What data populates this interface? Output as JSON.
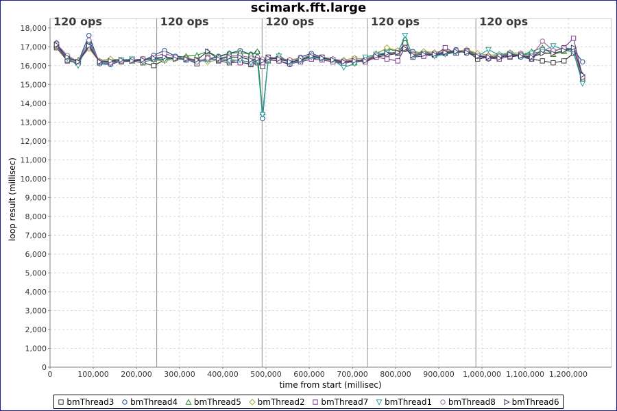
{
  "chart_data": {
    "type": "line",
    "title": "scimark.fft.large",
    "xlabel": "time from start (millisec)",
    "ylabel": "loop result (millisec)",
    "xlim": [
      0,
      1300000
    ],
    "ylim": [
      0,
      18500
    ],
    "x_ticks": [
      0,
      100000,
      200000,
      300000,
      400000,
      500000,
      600000,
      700000,
      800000,
      900000,
      1000000,
      1100000,
      1200000
    ],
    "x_tick_labels": [
      "0",
      "100,000",
      "200,000",
      "300,000",
      "400,000",
      "500,000",
      "600,000",
      "700,000",
      "800,000",
      "900,000",
      "1,000,000",
      "1,100,000",
      "1,200,000"
    ],
    "y_ticks": [
      0,
      1000,
      2000,
      3000,
      4000,
      5000,
      6000,
      7000,
      8000,
      9000,
      10000,
      11000,
      12000,
      13000,
      14000,
      15000,
      16000,
      17000,
      18000
    ],
    "y_tick_labels": [
      "0",
      "1,000",
      "2,000",
      "3,000",
      "4,000",
      "5,000",
      "6,000",
      "7,000",
      "8,000",
      "9,000",
      "10,000",
      "11,000",
      "12,000",
      "13,000",
      "14,000",
      "15,000",
      "16,000",
      "17,000",
      "18,000"
    ],
    "grid": true,
    "legend_position": "bottom",
    "phases": [
      {
        "label": "120 ops",
        "start": 0
      },
      {
        "label": "120 ops",
        "start": 247000
      },
      {
        "label": "120 ops",
        "start": 491000
      },
      {
        "label": "120 ops",
        "start": 735000
      },
      {
        "label": "120 ops",
        "start": 986000
      }
    ],
    "x": [
      15000,
      40000,
      65000,
      90000,
      115000,
      140000,
      165000,
      190000,
      215000,
      240000,
      265000,
      290000,
      315000,
      340000,
      365000,
      390000,
      415000,
      440000,
      465000,
      480000,
      492000,
      505000,
      530000,
      555000,
      580000,
      605000,
      630000,
      655000,
      680000,
      705000,
      730000,
      755000,
      780000,
      805000,
      822000,
      840000,
      865000,
      890000,
      915000,
      940000,
      965000,
      990000,
      1015000,
      1040000,
      1065000,
      1090000,
      1115000,
      1140000,
      1165000,
      1190000,
      1212000,
      1233000
    ],
    "series": [
      {
        "name": "bmThread3",
        "marker": "square",
        "color": "#3a3a3a",
        "values": [
          16950,
          16250,
          16150,
          17150,
          16150,
          16250,
          16200,
          16250,
          16150,
          16000,
          16300,
          16450,
          16350,
          16100,
          16450,
          16250,
          16150,
          16200,
          16050,
          16150,
          15950,
          16450,
          16350,
          16250,
          16200,
          16350,
          16450,
          16250,
          16150,
          16350,
          16200,
          16450,
          16550,
          16650,
          17200,
          16450,
          16650,
          16550,
          16650,
          16700,
          16750,
          16350,
          16450,
          16550,
          16450,
          16550,
          16350,
          16250,
          16150,
          16250,
          16650,
          15300
        ]
      },
      {
        "name": "bmThread4",
        "marker": "circle",
        "color": "#1f4e8c",
        "values": [
          17200,
          16400,
          16200,
          17600,
          16100,
          16050,
          16250,
          16300,
          16250,
          16550,
          16800,
          16500,
          16450,
          16250,
          16350,
          16500,
          16650,
          16800,
          16600,
          16700,
          13200,
          16350,
          16250,
          16050,
          16450,
          16650,
          16450,
          16350,
          16250,
          16200,
          16350,
          16550,
          16650,
          16700,
          16850,
          16750,
          16650,
          16550,
          16650,
          16850,
          16650,
          16550,
          16350,
          16450,
          16650,
          16450,
          16350,
          16850,
          16750,
          16950,
          16850,
          16200
        ]
      },
      {
        "name": "bmThread5",
        "marker": "triangle-up",
        "color": "#2e8b2e",
        "values": [
          17100,
          16350,
          16300,
          17050,
          16250,
          16350,
          16300,
          16250,
          16300,
          16350,
          16350,
          16400,
          16500,
          16550,
          16750,
          16450,
          16650,
          16700,
          16600,
          16750,
          13500,
          16250,
          16550,
          16150,
          16300,
          16550,
          16400,
          16350,
          16250,
          16150,
          16300,
          16650,
          16900,
          16750,
          17450,
          16550,
          16750,
          16600,
          16750,
          16700,
          16800,
          16600,
          16400,
          16500,
          16650,
          16550,
          16750,
          16950,
          16600,
          16750,
          16900,
          15500
        ]
      },
      {
        "name": "bmThread2",
        "marker": "diamond",
        "color": "#a8a840",
        "values": [
          17000,
          16300,
          16250,
          16900,
          16200,
          16350,
          16250,
          16300,
          16350,
          16300,
          16250,
          16350,
          16400,
          16300,
          16200,
          16300,
          16350,
          16250,
          16200,
          16300,
          16250,
          16350,
          16250,
          16300,
          16350,
          16450,
          16350,
          16250,
          16300,
          16400,
          16350,
          16600,
          16950,
          16800,
          16900,
          16650,
          16750,
          16700,
          16800,
          16750,
          16850,
          16650,
          16550,
          16600,
          16700,
          16650,
          16550,
          16700,
          16650,
          16800,
          16750,
          15400
        ]
      },
      {
        "name": "bmThread7",
        "marker": "square",
        "color": "#7a3a8c",
        "values": [
          17050,
          16300,
          16150,
          17000,
          16200,
          16150,
          16250,
          16300,
          16350,
          16350,
          16450,
          16400,
          16300,
          16250,
          16350,
          16300,
          16250,
          16150,
          16100,
          16250,
          16150,
          16300,
          16250,
          16100,
          16200,
          16350,
          16300,
          16200,
          16100,
          16250,
          16200,
          16450,
          16350,
          16250,
          16950,
          16450,
          16500,
          16550,
          16950,
          16650,
          16800,
          16500,
          16400,
          16350,
          16500,
          16600,
          16450,
          16850,
          16750,
          16950,
          17450,
          15400
        ]
      },
      {
        "name": "bmThread1",
        "marker": "triangle-down",
        "color": "#2a9d9d",
        "values": [
          17100,
          16400,
          16000,
          17250,
          16150,
          16100,
          16300,
          16350,
          16200,
          16300,
          16300,
          16400,
          16300,
          16200,
          16300,
          16350,
          16250,
          16300,
          16150,
          16250,
          13400,
          16300,
          16500,
          16150,
          16250,
          16450,
          16350,
          16300,
          15900,
          16100,
          16450,
          16600,
          16700,
          16650,
          17600,
          16450,
          16650,
          16500,
          16600,
          16700,
          16750,
          16500,
          16850,
          16550,
          16650,
          16550,
          16650,
          16750,
          17050,
          16850,
          16700,
          15050
        ]
      },
      {
        "name": "bmThread8",
        "marker": "circle",
        "color": "#9a6e9a",
        "values": [
          17150,
          16550,
          16200,
          17350,
          16200,
          16150,
          16250,
          16300,
          16250,
          16450,
          16650,
          16450,
          16350,
          16200,
          16400,
          16400,
          16500,
          16550,
          16400,
          16450,
          16350,
          16450,
          16400,
          16300,
          16400,
          16550,
          16450,
          16350,
          16250,
          16300,
          16300,
          16550,
          16600,
          16700,
          16950,
          16600,
          16650,
          16650,
          16700,
          16800,
          16750,
          16550,
          16500,
          16500,
          16600,
          16550,
          16500,
          17300,
          16800,
          16900,
          16850,
          15400
        ]
      },
      {
        "name": "bmThread6",
        "marker": "triangle-right",
        "color": "#3c3c64",
        "values": [
          17100,
          16450,
          16200,
          17050,
          16200,
          16250,
          16300,
          16250,
          16300,
          16400,
          16450,
          16350,
          16350,
          16300,
          16750,
          16350,
          16450,
          16450,
          16300,
          16350,
          16250,
          16400,
          16350,
          16200,
          16300,
          16500,
          16400,
          16300,
          16200,
          16250,
          16250,
          16500,
          16650,
          16700,
          16900,
          16550,
          16600,
          16600,
          16700,
          16750,
          16700,
          16500,
          16450,
          16400,
          16600,
          16500,
          16450,
          16650,
          16650,
          16800,
          16950,
          15500
        ]
      }
    ]
  }
}
